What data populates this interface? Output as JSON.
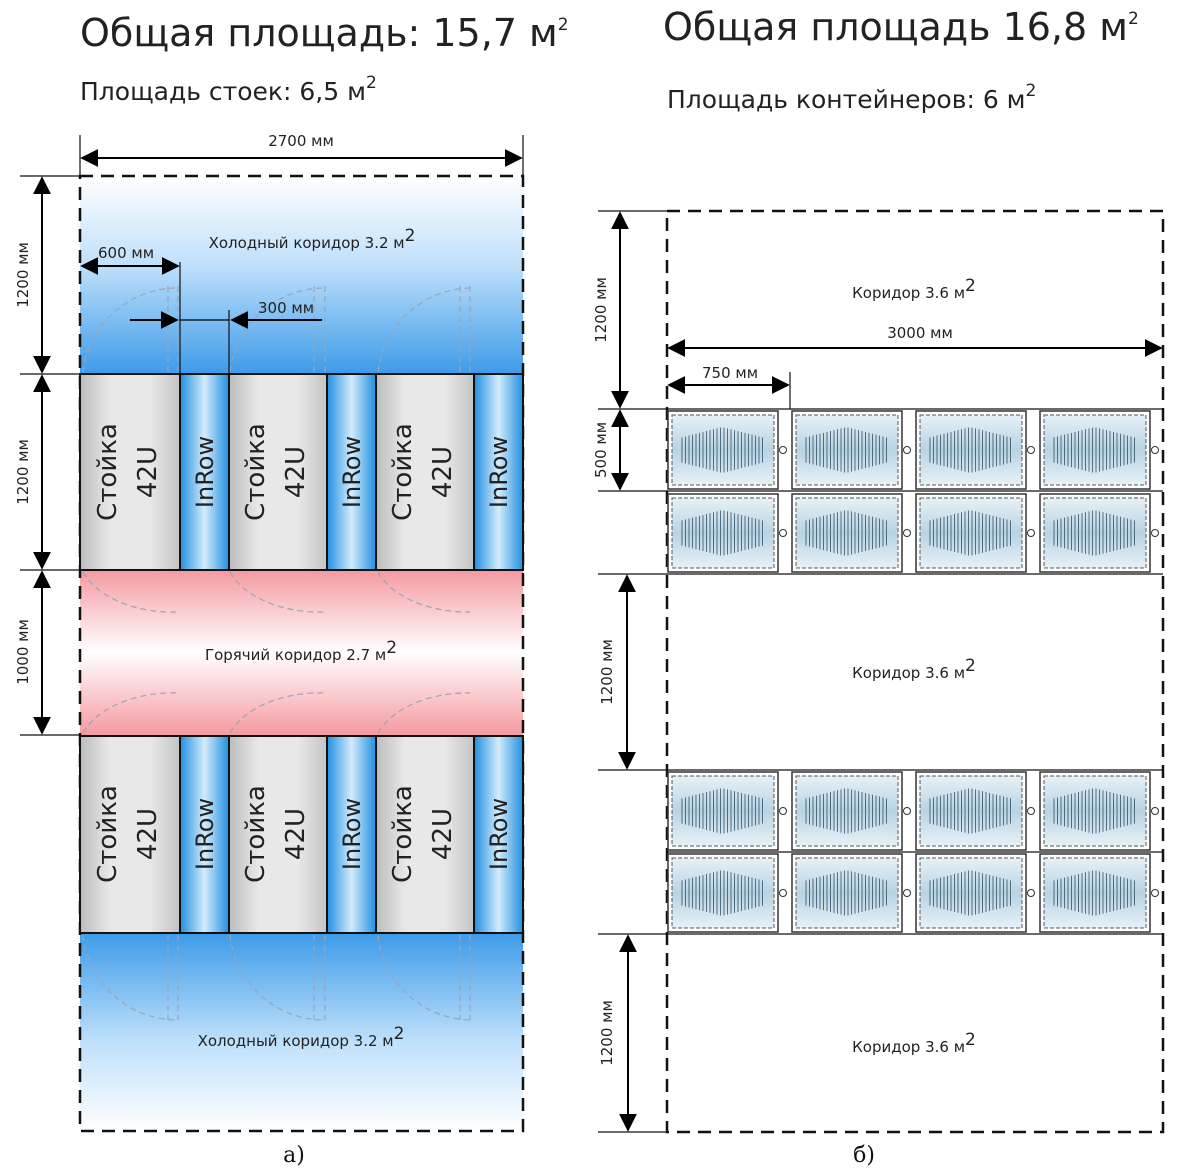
{
  "left": {
    "title": "Общая площадь: 15,7 м",
    "title_sup": "2",
    "subtitle": "Площадь стоек: 6,5 м",
    "subtitle_sup": "2",
    "dim_width": "2700 мм",
    "dim_cold_top": "1200 мм",
    "dim_rack_row": "1200 мм",
    "dim_hot": "1000 мм",
    "dim_600": "600 мм",
    "dim_300": "300 мм",
    "cold_top_label": "Холодный коридор 3.2 м",
    "cold_bottom_label": "Холодный коридор 3.2 м",
    "hot_label": "Горячий коридор 2.7 м",
    "label_sup": "2",
    "rack_line1": "Стойка",
    "rack_line2": "42U",
    "inrow_label": "InRow",
    "caption": "а)"
  },
  "right": {
    "title": "Общая площадь 16,8 м",
    "title_sup": "2",
    "subtitle": "Площадь контейнеров: 6 м",
    "subtitle_sup": "2",
    "dim_width": "3000 мм",
    "dim_750": "750 мм",
    "dim_500": "500 мм",
    "dim_corr_top": "1200 мм",
    "dim_corr_mid": "1200 мм",
    "dim_corr_bottom": "1200 мм",
    "corridor_label": "Коридор 3.6 м",
    "label_sup": "2",
    "caption": "б)"
  },
  "colors": {
    "cold": "#3d9be9",
    "hot": "#f4a0a6",
    "rack": "#cfcfcf",
    "inrow": "#2a9fe8"
  }
}
